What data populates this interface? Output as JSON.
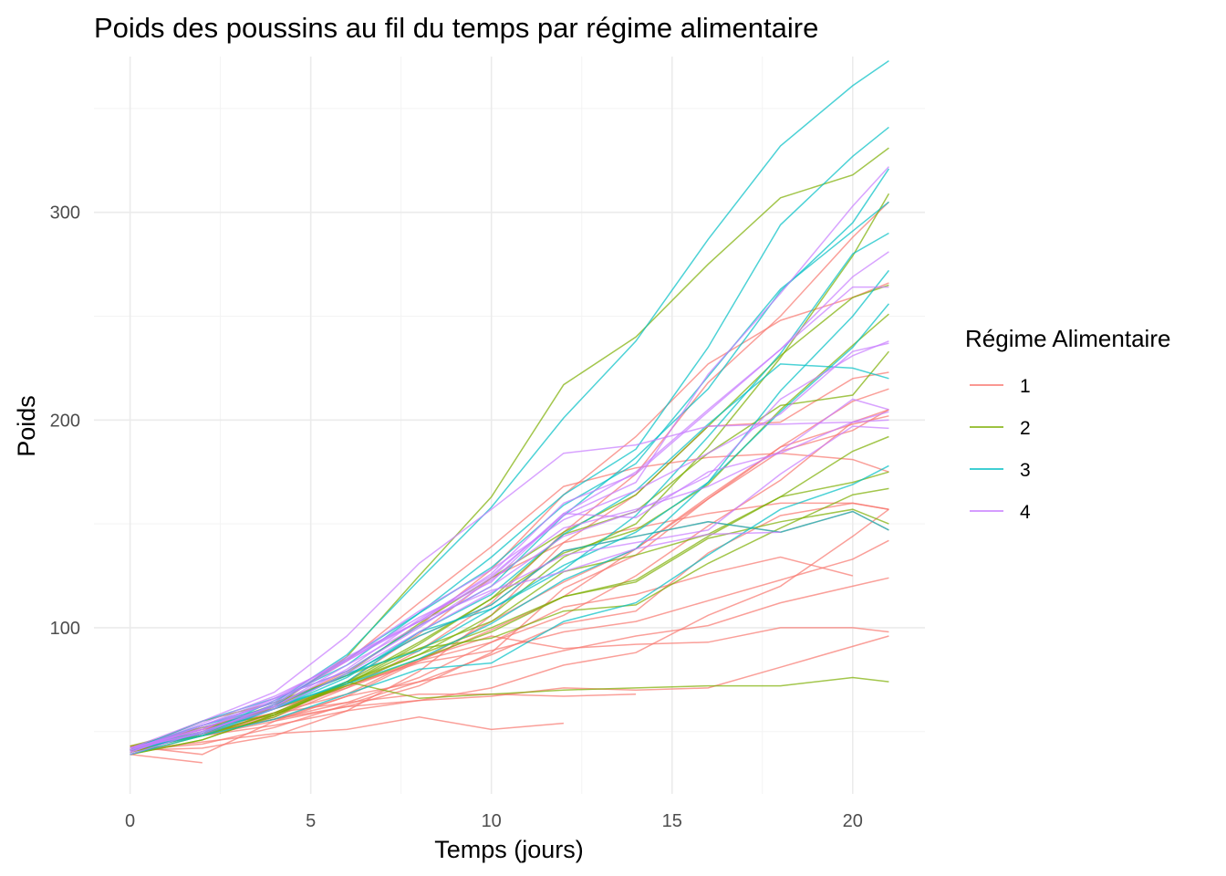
{
  "chart_data": {
    "type": "line",
    "title": "Poids des poussins au fil du temps par régime alimentaire",
    "xlabel": "Temps (jours)",
    "ylabel": "Poids",
    "xlim": [
      -1,
      22
    ],
    "ylim": [
      20,
      375
    ],
    "x_ticks": [
      0,
      5,
      10,
      15,
      20
    ],
    "y_ticks": [
      100,
      200,
      300
    ],
    "grid": true,
    "legend": {
      "title": "Régime Alimentaire",
      "position": "right",
      "entries": [
        {
          "label": "1",
          "color": "#F8766D"
        },
        {
          "label": "2",
          "color": "#7CAE00"
        },
        {
          "label": "3",
          "color": "#00BFC4"
        },
        {
          "label": "4",
          "color": "#C77CFF"
        }
      ]
    },
    "x": [
      0,
      2,
      4,
      6,
      8,
      10,
      12,
      14,
      16,
      18,
      20,
      21
    ],
    "series": [
      {
        "diet": "1",
        "values": [
          42,
          51,
          59,
          64,
          76,
          93,
          106,
          125,
          149,
          171,
          199,
          205
        ]
      },
      {
        "diet": "1",
        "values": [
          40,
          49,
          58,
          72,
          84,
          103,
          122,
          138,
          162,
          187,
          209,
          215
        ]
      },
      {
        "diet": "1",
        "values": [
          43,
          39,
          55,
          67,
          84,
          99,
          115,
          138,
          163,
          187,
          198,
          202
        ]
      },
      {
        "diet": "1",
        "values": [
          42,
          49,
          56,
          67,
          74,
          87,
          102,
          108,
          136,
          154,
          160,
          157
        ]
      },
      {
        "diet": "1",
        "values": [
          41,
          42,
          48,
          60,
          79,
          106,
          141,
          164,
          197,
          199,
          220,
          223
        ]
      },
      {
        "diet": "1",
        "values": [
          41,
          49,
          59,
          74,
          97,
          124,
          141,
          148,
          155,
          160,
          160,
          157
        ]
      },
      {
        "diet": "1",
        "values": [
          41,
          49,
          57,
          71,
          89,
          112,
          146,
          174,
          218,
          250,
          288,
          305
        ]
      },
      {
        "diet": "1",
        "values": [
          42,
          50,
          61,
          71,
          84,
          93,
          110,
          116,
          126,
          134,
          125,
          null
        ]
      },
      {
        "diet": "1",
        "values": [
          42,
          51,
          59,
          68,
          85,
          96,
          90,
          92,
          93,
          100,
          100,
          98
        ]
      },
      {
        "diet": "1",
        "values": [
          41,
          44,
          52,
          63,
          74,
          81,
          89,
          96,
          101,
          112,
          120,
          124
        ]
      },
      {
        "diet": "1",
        "values": [
          43,
          51,
          63,
          84,
          112,
          139,
          168,
          177,
          182,
          184,
          181,
          175
        ]
      },
      {
        "diet": "1",
        "values": [
          41,
          49,
          56,
          62,
          72,
          88,
          119,
          135,
          162,
          185,
          195,
          205
        ]
      },
      {
        "diet": "1",
        "values": [
          41,
          48,
          53,
          60,
          65,
          67,
          71,
          70,
          71,
          81,
          91,
          96
        ]
      },
      {
        "diet": "1",
        "values": [
          41,
          49,
          62,
          79,
          101,
          128,
          164,
          192,
          227,
          248,
          259,
          266
        ]
      },
      {
        "diet": "1",
        "values": [
          41,
          49,
          56,
          64,
          68,
          68,
          67,
          68,
          null,
          null,
          null,
          null
        ]
      },
      {
        "diet": "1",
        "values": [
          41,
          45,
          49,
          51,
          57,
          51,
          54,
          null,
          null,
          null,
          null,
          null
        ]
      },
      {
        "diet": "1",
        "values": [
          42,
          51,
          61,
          72,
          83,
          89,
          98,
          103,
          113,
          123,
          133,
          142
        ]
      },
      {
        "diet": "1",
        "values": [
          39,
          35,
          null,
          null,
          null,
          null,
          null,
          null,
          null,
          null,
          null,
          null
        ]
      },
      {
        "diet": "1",
        "values": [
          43,
          48,
          55,
          62,
          65,
          71,
          82,
          88,
          106,
          120,
          144,
          157
        ]
      },
      {
        "diet": "1",
        "values": [
          41,
          49,
          63,
          77,
          96,
          111,
          137,
          144,
          151,
          146,
          156,
          147
        ]
      },
      {
        "diet": "2",
        "values": [
          40,
          50,
          62,
          86,
          125,
          163,
          217,
          240,
          275,
          307,
          318,
          331
        ]
      },
      {
        "diet": "2",
        "values": [
          41,
          55,
          64,
          77,
          90,
          95,
          108,
          111,
          131,
          148,
          164,
          167
        ]
      },
      {
        "diet": "2",
        "values": [
          43,
          52,
          61,
          73,
          90,
          103,
          127,
          135,
          145,
          163,
          170,
          175
        ]
      },
      {
        "diet": "2",
        "values": [
          42,
          52,
          58,
          74,
          66,
          68,
          70,
          71,
          72,
          72,
          76,
          74
        ]
      },
      {
        "diet": "2",
        "values": [
          40,
          49,
          62,
          78,
          102,
          124,
          146,
          164,
          197,
          231,
          259,
          265
        ]
      },
      {
        "diet": "2",
        "values": [
          42,
          48,
          57,
          74,
          93,
          114,
          136,
          147,
          169,
          205,
          236,
          251
        ]
      },
      {
        "diet": "2",
        "values": [
          39,
          46,
          58,
          73,
          87,
          100,
          115,
          123,
          144,
          163,
          185,
          192
        ]
      },
      {
        "diet": "2",
        "values": [
          39,
          46,
          58,
          73,
          92,
          114,
          145,
          156,
          184,
          207,
          212,
          233
        ]
      },
      {
        "diet": "2",
        "values": [
          39,
          48,
          59,
          74,
          87,
          106,
          134,
          150,
          187,
          230,
          279,
          309
        ]
      },
      {
        "diet": "2",
        "values": [
          42,
          48,
          59,
          72,
          85,
          98,
          115,
          122,
          143,
          151,
          157,
          150
        ]
      },
      {
        "diet": "3",
        "values": [
          42,
          53,
          62,
          73,
          85,
          102,
          123,
          138,
          170,
          204,
          235,
          256
        ]
      },
      {
        "diet": "3",
        "values": [
          41,
          49,
          65,
          82,
          107,
          129,
          159,
          179,
          221,
          263,
          291,
          305
        ]
      },
      {
        "diet": "3",
        "values": [
          39,
          50,
          63,
          77,
          96,
          111,
          137,
          144,
          151,
          146,
          156,
          147
        ]
      },
      {
        "diet": "3",
        "values": [
          41,
          49,
          63,
          85,
          107,
          134,
          164,
          186,
          235,
          294,
          327,
          341
        ]
      },
      {
        "diet": "3",
        "values": [
          41,
          53,
          64,
          87,
          123,
          158,
          201,
          238,
          287,
          332,
          361,
          373
        ]
      },
      {
        "diet": "3",
        "values": [
          39,
          48,
          61,
          76,
          98,
          116,
          145,
          166,
          198,
          227,
          225,
          220
        ]
      },
      {
        "diet": "3",
        "values": [
          41,
          48,
          56,
          68,
          80,
          83,
          103,
          112,
          135,
          157,
          169,
          178
        ]
      },
      {
        "diet": "3",
        "values": [
          41,
          49,
          61,
          74,
          98,
          109,
          128,
          154,
          192,
          232,
          280,
          290
        ]
      },
      {
        "diet": "3",
        "values": [
          42,
          50,
          61,
          78,
          89,
          109,
          130,
          146,
          170,
          214,
          250,
          272
        ]
      },
      {
        "diet": "3",
        "values": [
          41,
          55,
          66,
          79,
          101,
          120,
          154,
          182,
          215,
          262,
          295,
          321
        ]
      },
      {
        "diet": "4",
        "values": [
          42,
          51,
          66,
          85,
          103,
          124,
          155,
          153,
          175,
          184,
          199,
          204
        ]
      },
      {
        "diet": "4",
        "values": [
          42,
          49,
          63,
          84,
          103,
          126,
          160,
          174,
          204,
          234,
          269,
          281
        ]
      },
      {
        "diet": "4",
        "values": [
          42,
          55,
          69,
          96,
          131,
          157,
          184,
          188,
          197,
          198,
          199,
          200
        ]
      },
      {
        "diet": "4",
        "values": [
          42,
          51,
          65,
          86,
          103,
          118,
          127,
          138,
          145,
          146,
          null,
          null
        ]
      },
      {
        "diet": "4",
        "values": [
          41,
          50,
          61,
          78,
          98,
          117,
          135,
          141,
          147,
          174,
          197,
          196
        ]
      },
      {
        "diet": "4",
        "values": [
          40,
          52,
          62,
          82,
          101,
          120,
          144,
          156,
          173,
          210,
          231,
          238
        ]
      },
      {
        "diet": "4",
        "values": [
          41,
          53,
          66,
          79,
          100,
          123,
          148,
          157,
          168,
          185,
          210,
          205
        ]
      },
      {
        "diet": "4",
        "values": [
          39,
          50,
          62,
          80,
          104,
          125,
          154,
          170,
          222,
          261,
          303,
          322
        ]
      },
      {
        "diet": "4",
        "values": [
          40,
          53,
          64,
          85,
          108,
          128,
          152,
          166,
          184,
          203,
          233,
          237
        ]
      },
      {
        "diet": "4",
        "values": [
          41,
          54,
          67,
          84,
          105,
          122,
          155,
          175,
          205,
          234,
          264,
          264
        ]
      }
    ]
  }
}
